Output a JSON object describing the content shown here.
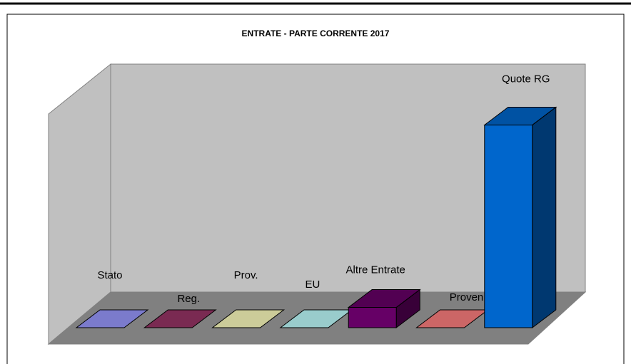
{
  "chart_data": {
    "type": "bar3d",
    "title": "ENTRATE - PARTE CORRENTE 2017",
    "categories": [
      "Stato",
      "Reg.",
      "Prov.",
      "EU",
      "Altre Entrate",
      "Proven",
      "Quote RG"
    ],
    "values": [
      0,
      0,
      0,
      0,
      10,
      0,
      100
    ],
    "colors": [
      "#7b7bcc",
      "#7a2a52",
      "#cccc99",
      "#99cccc",
      "#660066",
      "#cc6666",
      "#0066cc"
    ],
    "ylim": [
      0,
      110
    ]
  }
}
